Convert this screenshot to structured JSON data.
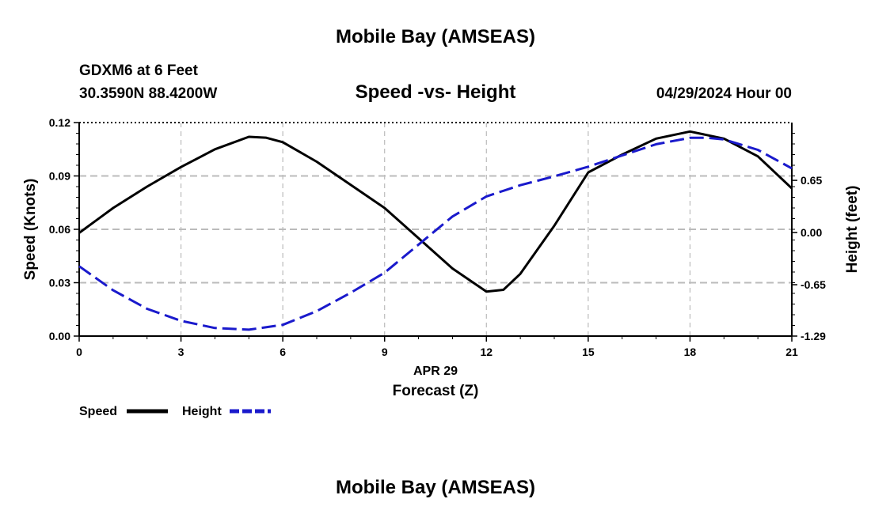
{
  "header": {
    "title": "Mobile Bay (AMSEAS)",
    "station": "GDXM6 at 6 Feet",
    "coords": "30.3590N  88.4200W",
    "subtitle": "Speed -vs- Height",
    "datetime": "04/29/2024 Hour 00"
  },
  "footer": {
    "title": "Mobile Bay (AMSEAS)"
  },
  "colors": {
    "speed": "#000000",
    "height": "#1a1acc",
    "grid": "#bbbbbb"
  },
  "chart_data": {
    "type": "line",
    "title": "Speed -vs- Height",
    "xlabel": "Forecast (Z)",
    "xdate": "APR 29",
    "ylabel": "Speed (Knots)",
    "y2label": "Height (feet)",
    "xlim": [
      0,
      21
    ],
    "ylim": [
      0,
      0.12
    ],
    "y2lim": [
      -1.29,
      1.37
    ],
    "xticks": [
      "0",
      "3",
      "6",
      "9",
      "12",
      "15",
      "18",
      "21"
    ],
    "yticks": [
      "0.00",
      "0.03",
      "0.06",
      "0.09",
      "0.12"
    ],
    "y2ticks": [
      {
        "value": -1.29,
        "label": "-1.29"
      },
      {
        "value": -0.65,
        "label": "-0.65"
      },
      {
        "value": 0.0,
        "label": "0.00"
      },
      {
        "value": 0.65,
        "label": "0.65"
      }
    ],
    "grid": true,
    "series": [
      {
        "name": "Speed",
        "axis": "left",
        "style": "solid",
        "x": [
          0,
          1,
          2,
          3,
          4,
          5,
          5.5,
          6,
          7,
          8,
          9,
          10,
          11,
          12,
          12.5,
          13,
          14,
          15,
          16,
          17,
          18,
          19,
          20,
          21
        ],
        "values": [
          0.058,
          0.072,
          0.084,
          0.095,
          0.105,
          0.112,
          0.1115,
          0.109,
          0.098,
          0.085,
          0.072,
          0.055,
          0.038,
          0.025,
          0.026,
          0.035,
          0.062,
          0.092,
          0.102,
          0.111,
          0.115,
          0.111,
          0.101,
          0.083
        ]
      },
      {
        "name": "Height",
        "axis": "right",
        "style": "dashed",
        "x": [
          0,
          1,
          2,
          3,
          4,
          5,
          6,
          7,
          8,
          9,
          10,
          11,
          12,
          13,
          14,
          15,
          16,
          17,
          18,
          18.5,
          19,
          20,
          21
        ],
        "values": [
          -0.42,
          -0.72,
          -0.95,
          -1.1,
          -1.19,
          -1.21,
          -1.15,
          -0.98,
          -0.75,
          -0.5,
          -0.15,
          0.2,
          0.45,
          0.59,
          0.7,
          0.82,
          0.96,
          1.1,
          1.18,
          1.18,
          1.16,
          1.03,
          0.8
        ]
      }
    ],
    "legend": [
      {
        "label": "Speed"
      },
      {
        "label": "Height"
      }
    ],
    "legend_position": "bottom-left"
  }
}
